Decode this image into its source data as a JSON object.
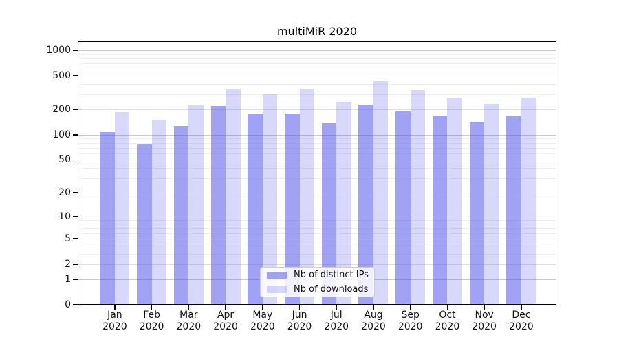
{
  "title": "multiMiR 2020",
  "chart_data": {
    "type": "bar",
    "title": "multiMiR 2020",
    "categories": [
      {
        "month": "Jan",
        "year": "2020"
      },
      {
        "month": "Feb",
        "year": "2020"
      },
      {
        "month": "Mar",
        "year": "2020"
      },
      {
        "month": "Apr",
        "year": "2020"
      },
      {
        "month": "May",
        "year": "2020"
      },
      {
        "month": "Jun",
        "year": "2020"
      },
      {
        "month": "Jul",
        "year": "2020"
      },
      {
        "month": "Aug",
        "year": "2020"
      },
      {
        "month": "Sep",
        "year": "2020"
      },
      {
        "month": "Oct",
        "year": "2020"
      },
      {
        "month": "Nov",
        "year": "2020"
      },
      {
        "month": "Dec",
        "year": "2020"
      }
    ],
    "series": [
      {
        "name": "Nb of distinct IPs",
        "values": [
          107,
          77,
          127,
          218,
          179,
          180,
          137,
          227,
          188,
          169,
          141,
          166
        ]
      },
      {
        "name": "Nb of downloads",
        "values": [
          186,
          152,
          228,
          352,
          302,
          352,
          247,
          430,
          340,
          275,
          233,
          275
        ]
      }
    ],
    "y_axis": {
      "scale": "log1p",
      "ticks": [
        0,
        1,
        2,
        5,
        10,
        20,
        50,
        100,
        200,
        500,
        1000
      ],
      "tick_labels": [
        "0",
        "1",
        "2",
        "5",
        "10",
        "20",
        "50",
        "100",
        "200",
        "500",
        "1000"
      ],
      "minor_ticks": [
        3,
        4,
        6,
        7,
        8,
        9,
        30,
        40,
        60,
        70,
        80,
        90,
        300,
        400,
        600,
        700,
        800,
        900
      ],
      "decade_ticks": [
        1,
        10,
        100,
        1000
      ],
      "range": [
        0,
        1275
      ]
    },
    "xlabel": "",
    "ylabel": "",
    "grid": true,
    "legend_position": "inside-bottom-center",
    "colors": {
      "bar_fills": [
        "rgba(92,92,235,0.57)",
        "rgba(92,92,235,0.24)"
      ],
      "bar_fills_hex": [
        "#a2a2f4",
        "#d8d8fa"
      ],
      "grid_decade": "#c8c8c8",
      "grid_major": "#dedede",
      "grid_minor": "#f0f0f0",
      "axis": "#000000",
      "text": "#111111"
    }
  }
}
